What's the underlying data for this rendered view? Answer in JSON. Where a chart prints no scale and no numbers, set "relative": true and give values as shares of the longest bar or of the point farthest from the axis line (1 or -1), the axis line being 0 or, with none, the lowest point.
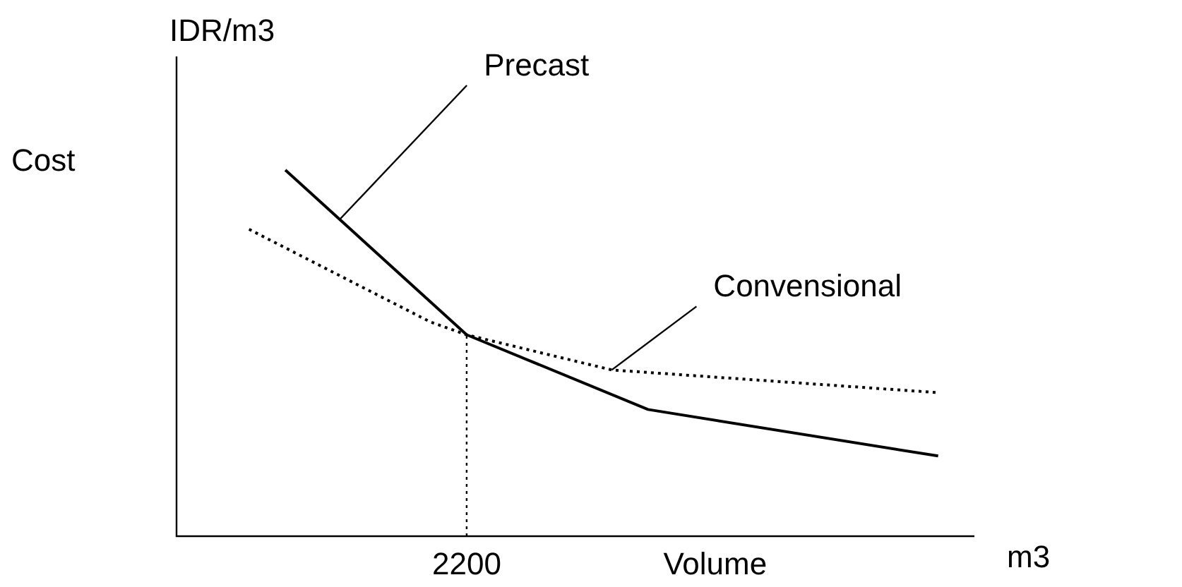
{
  "chart_data": {
    "type": "line",
    "relative": true,
    "ylabel": "Cost",
    "xlabel": "Volume",
    "annotations": [
      "IDR/m3",
      "m3",
      {
        "text": "2200",
        "y": 0.55
      }
    ],
    "categories": [
      null,
      null,
      null,
      null,
      null,
      null,
      null,
      null,
      null,
      null,
      null,
      null,
      null,
      null,
      null,
      null,
      null,
      null,
      null,
      null,
      null,
      null,
      null
    ],
    "marker": "none",
    "series": [
      {
        "name": "Precast",
        "color": "#000000",
        "line_style": "solid",
        "values": [
          null,
          null,
          null,
          1.0,
          null,
          null,
          null,
          null,
          0.55,
          null,
          null,
          null,
          null,
          0.346,
          null,
          null,
          null,
          null,
          null,
          null,
          null,
          0.219,
          null
        ]
      },
      {
        "name": "Convensional",
        "color": "#000000",
        "line_style": "dotted",
        "values": [
          null,
          null,
          0.838,
          null,
          null,
          null,
          null,
          0.585,
          0.55,
          null,
          null,
          null,
          0.454,
          null,
          null,
          null,
          null,
          null,
          null,
          null,
          null,
          0.392,
          null
        ]
      }
    ]
  }
}
